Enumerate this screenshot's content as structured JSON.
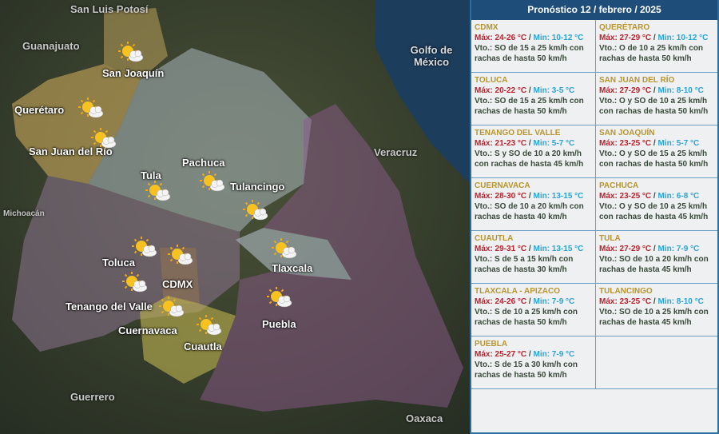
{
  "panel": {
    "title": "Pronóstico 12 / febrero / 2025"
  },
  "forecasts": [
    {
      "name": "CDMX",
      "max": "Máx: 24-26 °C",
      "min": "Min: 10-12 °C",
      "wind": "Vto.: SO de 15 a 25 km/h con rachas de hasta 50 km/h"
    },
    {
      "name": "QUERÉTARO",
      "max": "Máx: 27-29 °C",
      "min": "Min: 10-12 °C",
      "wind": "Vto.: O de 10 a 25 km/h con rachas de hasta 50 km/h"
    },
    {
      "name": "TOLUCA",
      "max": "Máx: 20-22 °C",
      "min": "Min: 3-5 °C",
      "wind": "Vto.: SO de 15 a 25 km/h con rachas de hasta 50 km/h"
    },
    {
      "name": "SAN JUAN DEL RÍO",
      "max": "Máx: 27-29 °C",
      "min": "Min: 8-10 °C",
      "wind": "Vto.: O y SO de 10 a 25 km/h con rachas de hasta 50 km/h"
    },
    {
      "name": "TENANGO DEL VALLE",
      "max": "Máx: 21-23 °C",
      "min": "Min: 5-7 °C",
      "wind": "Vto.: S y SO de 10 a 20 km/h con rachas de hasta 45 km/h"
    },
    {
      "name": "SAN JOAQUÍN",
      "max": "Máx: 23-25 °C",
      "min": "Min: 5-7 °C",
      "wind": "Vto.: O y SO de 15 a 25 km/h con rachas de hasta 50 km/h"
    },
    {
      "name": "CUERNAVACA",
      "max": "Máx: 28-30 °C",
      "min": "Min: 13-15 °C",
      "wind": "Vto.: SO de 10 a 20 km/h con rachas de hasta 40 km/h"
    },
    {
      "name": "PACHUCA",
      "max": "Máx: 23-25 °C",
      "min": "Min: 6-8 °C",
      "wind": "Vto.: O y SO de 10 a 25 km/h con rachas de hasta 45 km/h"
    },
    {
      "name": "CUAUTLA",
      "max": "Máx: 29-31 °C",
      "min": "Min: 13-15 °C",
      "wind": "Vto.: S de 5 a 15 km/h con rachas de hasta 30 km/h"
    },
    {
      "name": "TULA",
      "max": "Máx: 27-29 °C",
      "min": "Min: 7-9 °C",
      "wind": "Vto.: SO de 10 a 20 km/h con rachas de hasta 45 km/h"
    },
    {
      "name": "TLAXCALA - APIZACO",
      "max": "Máx: 24-26 °C",
      "min": "Min:  7-9 °C",
      "wind": "Vto.: S de 10 a 25 km/h con rachas de hasta 50 km/h"
    },
    {
      "name": "TULANCINGO",
      "max": "Máx: 23-25 °C",
      "min": "Min: 8-10 °C",
      "wind": "Vto.: SO de 10 a 25 km/h con rachas de hasta 45 km/h"
    },
    {
      "name": "PUEBLA",
      "max": "Máx: 25-27 °C",
      "min": "Min: 7-9 °C",
      "wind": "Vto.: S de 15 a 30 km/h con rachas de hasta 50 km/h"
    }
  ],
  "map": {
    "regions": [
      "San Luis Potosí",
      "Guanajuato",
      "Golfo de México",
      "Veracruz",
      "Michoacán",
      "Guerrero",
      "Oaxaca"
    ],
    "cities": [
      "San Joaquín",
      "Querétaro",
      "San Juan del Río",
      "Tula",
      "Pachuca",
      "Tulancingo",
      "Toluca",
      "CDMX",
      "Tenango del Valle",
      "Tlaxcala",
      "Cuernavaca",
      "Cuautla",
      "Puebla"
    ],
    "icon": "sun-behind-cloud-icon"
  },
  "colors": {
    "header": "#1f4d7a",
    "name": "#b9952b",
    "max": "#c0202a",
    "min": "#2aa4d8"
  }
}
